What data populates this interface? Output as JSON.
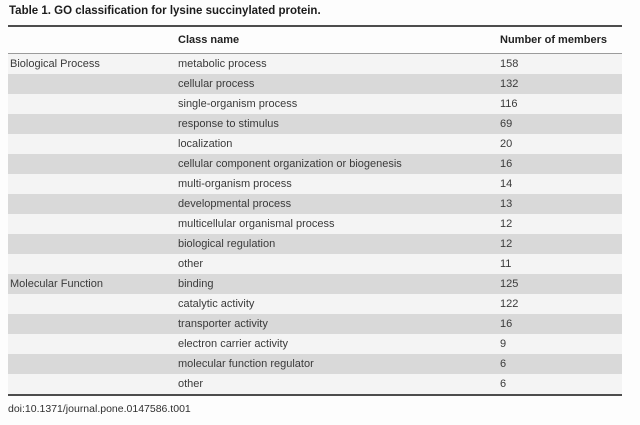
{
  "title": "Table 1. GO classification for lysine succinylated protein.",
  "columns": {
    "group": "",
    "class_name": "Class name",
    "members": "Number of members"
  },
  "table": {
    "groups": [
      {
        "name": "Biological Process",
        "rows": [
          {
            "class_name": "metabolic process",
            "members": 158
          },
          {
            "class_name": "cellular process",
            "members": 132
          },
          {
            "class_name": "single-organism process",
            "members": 116
          },
          {
            "class_name": "response to stimulus",
            "members": 69
          },
          {
            "class_name": "localization",
            "members": 20
          },
          {
            "class_name": "cellular component organization or biogenesis",
            "members": 16
          },
          {
            "class_name": "multi-organism process",
            "members": 14
          },
          {
            "class_name": "developmental process",
            "members": 13
          },
          {
            "class_name": "multicellular organismal process",
            "members": 12
          },
          {
            "class_name": "biological regulation",
            "members": 12
          },
          {
            "class_name": "other",
            "members": 11
          }
        ]
      },
      {
        "name": "Molecular Function",
        "rows": [
          {
            "class_name": "binding",
            "members": 125
          },
          {
            "class_name": "catalytic activity",
            "members": 122
          },
          {
            "class_name": "transporter activity",
            "members": 16
          },
          {
            "class_name": "electron carrier activity",
            "members": 9
          },
          {
            "class_name": "molecular function regulator",
            "members": 6
          },
          {
            "class_name": "other",
            "members": 6
          }
        ]
      }
    ]
  },
  "footer": {
    "doi": "doi:10.1371/journal.pone.0147586.t001"
  },
  "colors": {
    "row_shade": "#d9d9d9",
    "row_light": "#f4f4f4",
    "rule_dark": "#4d4d4d",
    "rule_light": "#9b9b9b"
  }
}
